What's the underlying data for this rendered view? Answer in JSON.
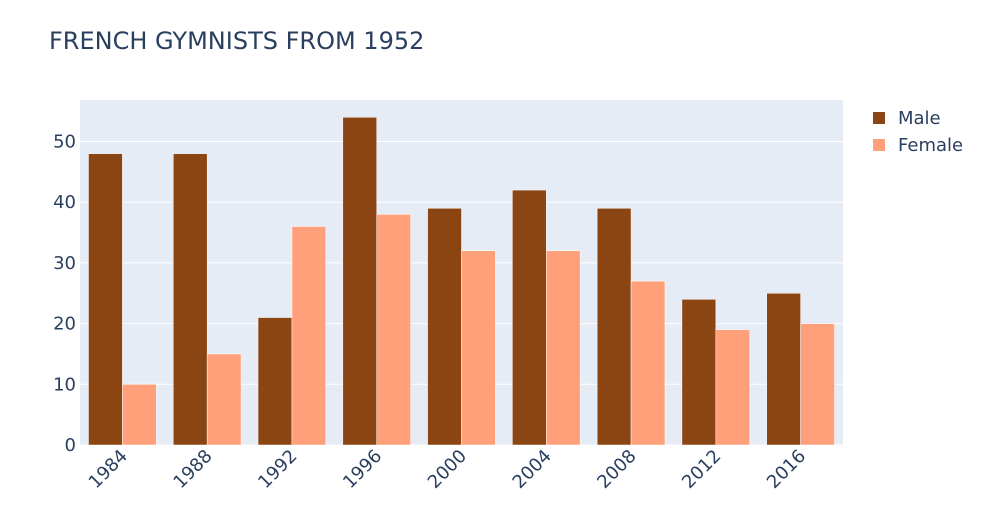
{
  "chart_data": {
    "type": "bar",
    "title": "FRENCH GYMNISTS FROM 1952",
    "categories": [
      "1984",
      "1988",
      "1992",
      "1996",
      "2000",
      "2004",
      "2008",
      "2012",
      "2016"
    ],
    "series": [
      {
        "name": "Male",
        "color": "#8b4513",
        "values": [
          48,
          48,
          21,
          54,
          39,
          42,
          39,
          24,
          25
        ]
      },
      {
        "name": "Female",
        "color": "#ffa07a",
        "values": [
          10,
          15,
          36,
          38,
          32,
          32,
          27,
          19,
          20
        ]
      }
    ],
    "xlabel": "",
    "ylabel": "",
    "ylim": [
      0,
      56.84
    ],
    "yticks": [
      0,
      10,
      20,
      30,
      40,
      50
    ],
    "grid": true,
    "legend_position": "top-right",
    "plot_background": "#e5ecf6"
  }
}
